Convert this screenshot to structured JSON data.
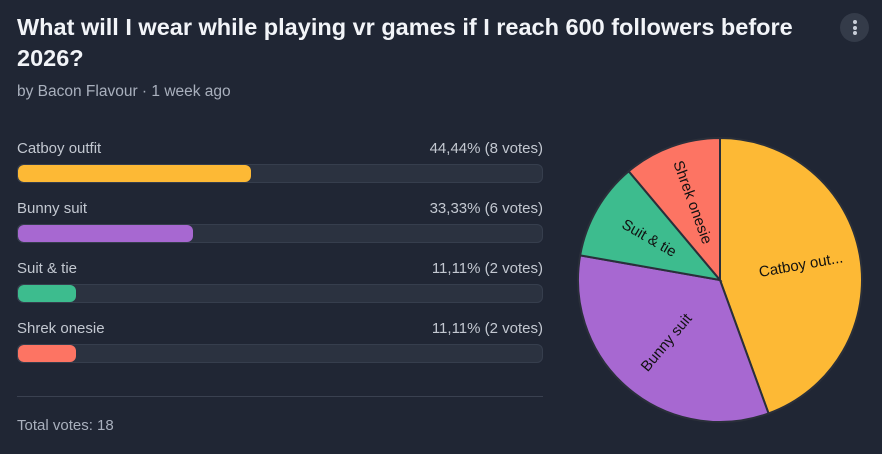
{
  "poll": {
    "title": "What will I wear while playing vr games if I reach 600 followers before 2026?",
    "byline": "by Bacon Flavour · 1 week ago",
    "total_votes_label": "Total votes: 18"
  },
  "options": [
    {
      "label": "Catboy outfit",
      "result": "44,44% (8 votes)",
      "pie_label": "Catboy out...",
      "percent": 44.44,
      "votes": 8,
      "color": "#fdb935"
    },
    {
      "label": "Bunny suit",
      "result": "33,33% (6 votes)",
      "pie_label": "Bunny suit",
      "percent": 33.33,
      "votes": 6,
      "color": "#a768d1"
    },
    {
      "label": "Suit & tie",
      "result": "11,11% (2 votes)",
      "pie_label": "Suit & tie",
      "percent": 11.11,
      "votes": 2,
      "color": "#3dbc8e"
    },
    {
      "label": "Shrek onesie",
      "result": "11,11% (2 votes)",
      "pie_label": "Shrek onesie",
      "percent": 11.11,
      "votes": 2,
      "color": "#fd7463"
    }
  ],
  "menu": {
    "icon": "kebab-menu-icon"
  },
  "chart_data": {
    "type": "pie",
    "categories": [
      "Catboy outfit",
      "Bunny suit",
      "Suit & tie",
      "Shrek onesie"
    ],
    "values": [
      8,
      6,
      2,
      2
    ],
    "colors": [
      "#fdb935",
      "#a768d1",
      "#3dbc8e",
      "#fd7463"
    ]
  }
}
